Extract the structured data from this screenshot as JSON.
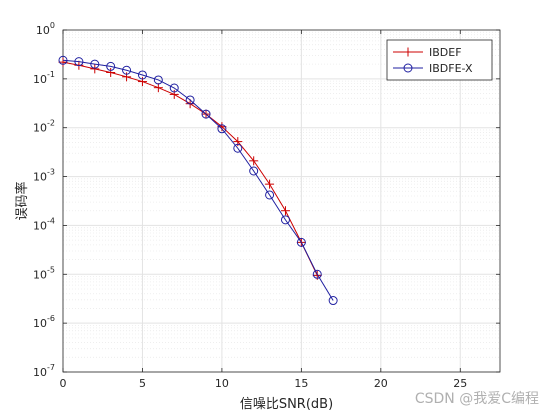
{
  "chart_data": {
    "type": "line",
    "title": "",
    "xlabel": "信噪比SNR(dB)",
    "ylabel": "误码率",
    "xlim": [
      0,
      27.5
    ],
    "ylim": [
      1e-07,
      1
    ],
    "yscale": "log",
    "grid": true,
    "minor_grid": true,
    "legend_position": "top-right",
    "x_ticks": [
      "0",
      "5",
      "10",
      "15",
      "20",
      "25"
    ],
    "x_tick_values": [
      0,
      5,
      10,
      15,
      20,
      25
    ],
    "y_tick_exponents": [
      0,
      -1,
      -2,
      -3,
      -4,
      -5,
      -6,
      -7
    ],
    "series": [
      {
        "name": "IBDEF",
        "color": "#cc0000",
        "marker": "plus",
        "x": [
          0,
          1,
          2,
          3,
          4,
          5,
          6,
          7,
          8,
          9,
          10,
          11,
          12,
          13,
          14,
          15,
          16
        ],
        "y": [
          0.22,
          0.19,
          0.16,
          0.135,
          0.11,
          0.088,
          0.066,
          0.048,
          0.031,
          0.019,
          0.0105,
          0.0052,
          0.0021,
          0.0007,
          0.0002,
          4.5e-05,
          9.5e-06
        ]
      },
      {
        "name": "IBDFE-X",
        "color": "#1f1fa0",
        "marker": "circle",
        "x": [
          0,
          1,
          2,
          3,
          4,
          5,
          6,
          7,
          8,
          9,
          10,
          11,
          12,
          13,
          14,
          15,
          16,
          17
        ],
        "y": [
          0.24,
          0.225,
          0.2,
          0.18,
          0.15,
          0.12,
          0.095,
          0.065,
          0.037,
          0.019,
          0.0095,
          0.0038,
          0.0013,
          0.00042,
          0.00013,
          4.5e-05,
          1e-05,
          2.9e-06
        ]
      }
    ]
  },
  "watermark": "CSDN @我爱C编程"
}
